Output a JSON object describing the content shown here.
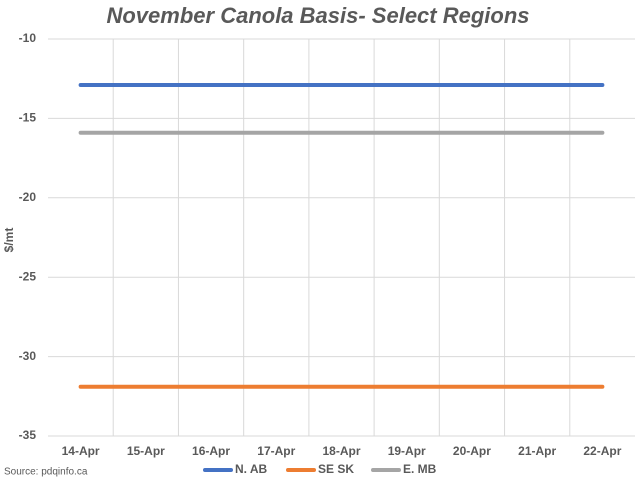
{
  "chart_data": {
    "type": "line",
    "title": "November Canola Basis- Select Regions",
    "y_label": "$/mt",
    "source": "Source: pdqinfo.ca",
    "categories": [
      "14-Apr",
      "15-Apr",
      "16-Apr",
      "17-Apr",
      "18-Apr",
      "19-Apr",
      "20-Apr",
      "21-Apr",
      "22-Apr"
    ],
    "series": [
      {
        "name": "N. AB",
        "color": "#4472c4",
        "values": [
          -12.9,
          -12.9,
          -12.9,
          -12.9,
          -12.9,
          -12.9,
          -12.9,
          -12.9,
          -12.9
        ]
      },
      {
        "name": "SE SK",
        "color": "#ed7d31",
        "values": [
          -31.9,
          -31.9,
          -31.9,
          -31.9,
          -31.9,
          -31.9,
          -31.9,
          -31.9,
          -31.9
        ]
      },
      {
        "name": "E. MB",
        "color": "#a5a5a5",
        "values": [
          -15.9,
          -15.9,
          -15.9,
          -15.9,
          -15.9,
          -15.9,
          -15.9,
          -15.9,
          -15.9
        ]
      }
    ],
    "ylim": [
      -35,
      -10
    ],
    "yticks": [
      -35,
      -30,
      -25,
      -20,
      -15,
      -10
    ],
    "grid": true,
    "legend": "bottom"
  }
}
